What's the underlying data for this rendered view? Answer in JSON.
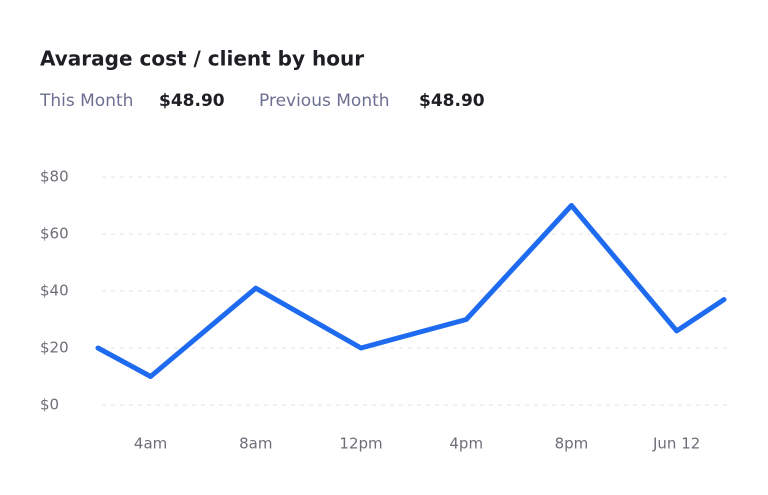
{
  "chart_data": {
    "type": "line",
    "title": "Avarage cost / client by hour",
    "summary": [
      {
        "label": "This Month",
        "value": "$48.90"
      },
      {
        "label": "Previous Month",
        "value": "$48.90"
      }
    ],
    "x": [
      -0.5,
      0,
      1,
      2,
      3,
      4,
      5,
      5.45
    ],
    "xlim": [
      -0.5,
      5.45
    ],
    "xticks": [
      {
        "value": 0,
        "label": "4am"
      },
      {
        "value": 1,
        "label": "8am"
      },
      {
        "value": 2,
        "label": "12pm"
      },
      {
        "value": 3,
        "label": "4pm"
      },
      {
        "value": 4,
        "label": "8pm"
      },
      {
        "value": 5,
        "label": "Jun 12"
      }
    ],
    "series": [
      {
        "color": "#1f6bf0",
        "values": [
          20,
          10,
          41,
          20,
          30,
          70,
          26,
          37
        ]
      }
    ],
    "ylim": [
      0,
      80
    ],
    "yticks": [
      {
        "value": 0,
        "label": "$0"
      },
      {
        "value": 20,
        "label": "$20"
      },
      {
        "value": 40,
        "label": "$40"
      },
      {
        "value": 60,
        "label": "$60"
      },
      {
        "value": 80,
        "label": "$80"
      }
    ],
    "grid": true
  }
}
